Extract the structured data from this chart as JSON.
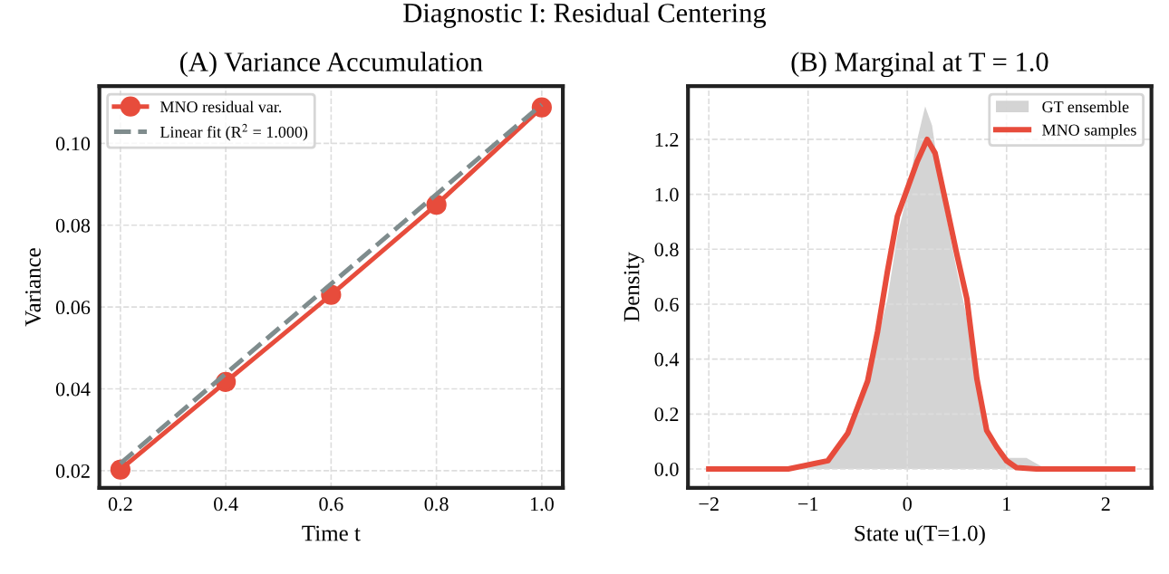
{
  "chart_data": [
    {
      "type": "line",
      "title": "(A) Variance Accumulation",
      "xlabel": "Time t",
      "ylabel": "Variance",
      "annotations": [
        "Diagnostic I: Residual Centering"
      ],
      "series": [
        {
          "name": "MNO residual var.",
          "color": "#e74c3c",
          "x": [
            0.2,
            0.4,
            0.6,
            0.8,
            1.0
          ],
          "values": [
            0.0203,
            0.0417,
            0.063,
            0.085,
            0.1088
          ],
          "marker": "circle",
          "line_style": "solid"
        },
        {
          "name": "Linear fit (R$^{2}$ = 1.000)",
          "color": "#7f8c8d",
          "x": [
            0.2,
            1.0
          ],
          "values": [
            0.0218,
            0.1095
          ],
          "marker": "none",
          "line_style": "dashed"
        }
      ],
      "xlim": [
        0.16,
        1.04
      ],
      "ylim": [
        0.0158,
        0.114
      ],
      "xticks": [
        0.2,
        0.4,
        0.6,
        0.8,
        {
          "value": 1,
          "label": "1.0"
        }
      ],
      "yticks": [
        {
          "value": 0.02,
          "label": "0.02"
        },
        {
          "value": 0.04,
          "label": "0.04"
        },
        {
          "value": 0.06,
          "label": "0.06"
        },
        {
          "value": 0.08,
          "label": "0.08"
        },
        {
          "value": 0.1,
          "label": "0.10"
        }
      ],
      "grid": true,
      "legend": "top left"
    },
    {
      "type": "line",
      "title": "(B) Marginal at T = 1.0",
      "xlabel": "State u(T=1.0)",
      "ylabel": "Density",
      "series": [
        {
          "name": "GT ensemble",
          "type": "area",
          "color": "#cccccc",
          "x": [
            -1.2,
            -1.0,
            -0.8,
            -0.6,
            -0.4,
            -0.2,
            -0.1,
            0.0,
            0.1,
            0.18,
            0.25,
            0.35,
            0.5,
            0.6,
            0.7,
            0.8,
            0.9,
            1.0,
            1.2,
            1.35,
            1.5
          ],
          "values": [
            0.0,
            0.01,
            0.03,
            0.12,
            0.32,
            0.62,
            0.85,
            1.0,
            1.2,
            1.32,
            1.25,
            1.0,
            0.72,
            0.55,
            0.3,
            0.12,
            0.06,
            0.04,
            0.04,
            0.01,
            0.0
          ]
        },
        {
          "name": "MNO samples",
          "type": "line",
          "color": "#e74c3c",
          "x": [
            -2.0,
            -1.2,
            -1.0,
            -0.8,
            -0.6,
            -0.4,
            -0.3,
            -0.2,
            -0.1,
            0.0,
            0.1,
            0.2,
            0.28,
            0.4,
            0.5,
            0.6,
            0.7,
            0.8,
            0.9,
            1.0,
            1.1,
            1.3,
            2.27
          ],
          "values": [
            0.0,
            0.0,
            0.015,
            0.03,
            0.13,
            0.32,
            0.5,
            0.72,
            0.92,
            1.02,
            1.12,
            1.2,
            1.15,
            0.95,
            0.78,
            0.62,
            0.33,
            0.14,
            0.08,
            0.03,
            0.005,
            0.0,
            0.0
          ]
        }
      ],
      "xlim": [
        -2.21,
        2.46
      ],
      "ylim": [
        -0.069,
        1.394
      ],
      "xticks": [
        {
          "value": -2,
          "label": "−2"
        },
        {
          "value": -1,
          "label": "−1"
        },
        0,
        1,
        2
      ],
      "yticks": [
        {
          "value": 0,
          "label": "0.0"
        },
        {
          "value": 0.2,
          "label": "0.2"
        },
        {
          "value": 0.4,
          "label": "0.4"
        },
        {
          "value": 0.6,
          "label": "0.6"
        },
        {
          "value": 0.8,
          "label": "0.8"
        },
        {
          "value": 1.0,
          "label": "1.0"
        },
        {
          "value": 1.2,
          "label": "1.2"
        }
      ],
      "grid": true,
      "legend": "top right"
    }
  ]
}
